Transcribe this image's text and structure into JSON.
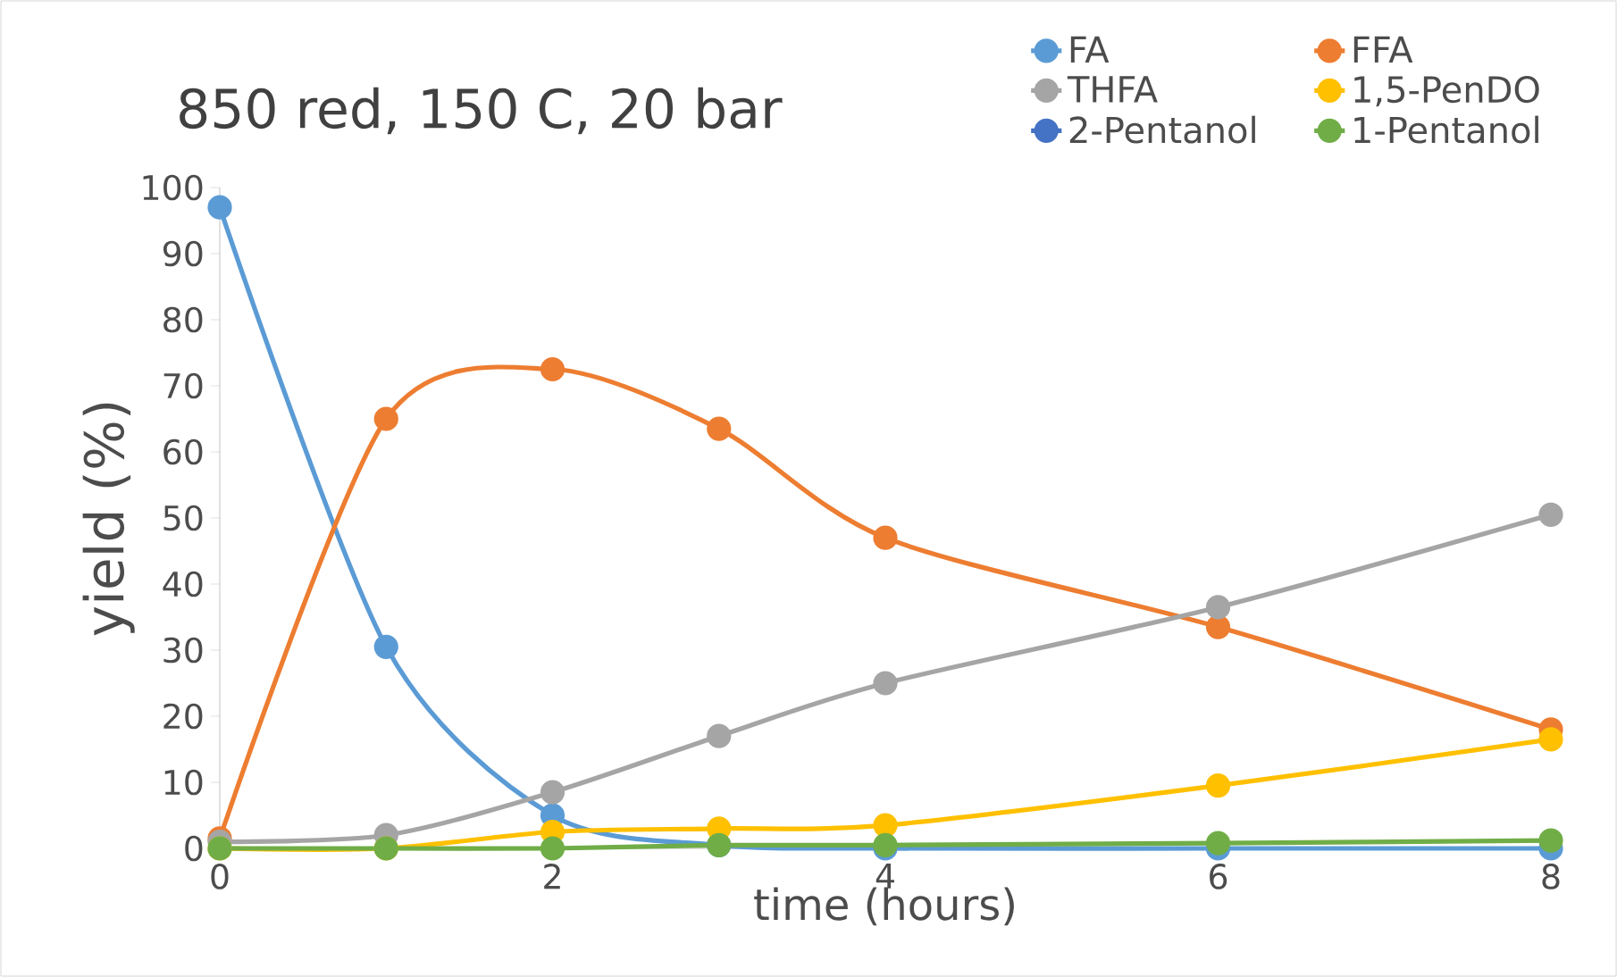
{
  "chart_data": {
    "type": "line",
    "title": "850 red, 150 C, 20 bar",
    "xlabel": "time (hours)",
    "ylabel": "yield (%)",
    "x": [
      0,
      1,
      2,
      3,
      4,
      6,
      8
    ],
    "series": [
      {
        "name": "FA",
        "color": "#5b9bd5",
        "values": [
          97,
          30.5,
          5,
          0.5,
          0,
          0,
          0
        ]
      },
      {
        "name": "FFA",
        "color": "#ed7d31",
        "values": [
          1.5,
          65,
          72.5,
          63.5,
          47,
          33.5,
          18
        ]
      },
      {
        "name": "THFA",
        "color": "#a5a5a5",
        "values": [
          1,
          2,
          8.5,
          17,
          25,
          36.5,
          50.5
        ]
      },
      {
        "name": "1,5-PenDO",
        "color": "#ffc000",
        "values": [
          0,
          0,
          2.5,
          3,
          3.5,
          9.5,
          16.5
        ]
      },
      {
        "name": "2-Pentanol",
        "color": "#4472c4",
        "values": [
          null,
          null,
          null,
          null,
          null,
          null,
          null
        ]
      },
      {
        "name": "1-Pentanol",
        "color": "#70ad47",
        "values": [
          0,
          0,
          0,
          0.5,
          0.5,
          0.8,
          1.2
        ]
      }
    ],
    "xlim": [
      0,
      8
    ],
    "xticks": [
      0,
      2,
      4,
      6,
      8
    ],
    "ylim": [
      0,
      100
    ],
    "yticks": [
      0,
      10,
      20,
      30,
      40,
      50,
      60,
      70,
      80,
      90,
      100
    ],
    "grid": false,
    "legend": "top right",
    "marker": "circle",
    "line_style": "solid"
  }
}
